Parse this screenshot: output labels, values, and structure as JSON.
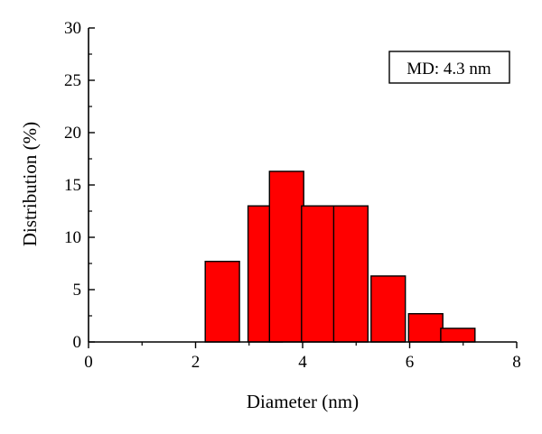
{
  "chart_data": {
    "type": "bar",
    "xlabel": "Diameter (nm)",
    "ylabel": "Distribution (%)",
    "xlim": [
      0,
      8
    ],
    "ylim": [
      0,
      30
    ],
    "xticks": [
      0,
      2,
      4,
      6,
      8
    ],
    "yticks": [
      0,
      5,
      10,
      15,
      20,
      25,
      30
    ],
    "bin_width": 0.8,
    "bars": [
      {
        "x": 2.5,
        "value": 7.7
      },
      {
        "x": 3.3,
        "value": 13.0
      },
      {
        "x": 3.7,
        "value": 16.3
      },
      {
        "x": 4.3,
        "value": 13.0
      },
      {
        "x": 4.9,
        "value": 13.0
      },
      {
        "x": 5.6,
        "value": 6.3
      },
      {
        "x": 6.3,
        "value": 2.7
      },
      {
        "x": 6.9,
        "value": 1.3
      }
    ],
    "bar_color": "#ff0000",
    "grid": false,
    "annotation": "MD: 4.3 nm"
  }
}
